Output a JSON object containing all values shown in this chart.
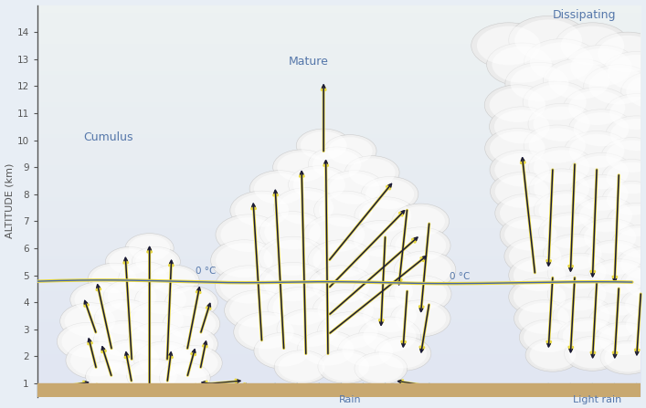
{
  "ylabel": "ALTITUDE (km)",
  "xlabel_rain": "Rain",
  "xlabel_light_rain": "Light rain",
  "ylim": [
    0.5,
    15
  ],
  "yticks": [
    1,
    2,
    3,
    4,
    5,
    6,
    7,
    8,
    9,
    10,
    11,
    12,
    13,
    14
  ],
  "bg_sky_top": "#c5dff0",
  "bg_sky_bottom": "#ddeeff",
  "bg_ground": "#c8a870",
  "cloud_color": "#f5f5f5",
  "cloud_edge": "#c0c0c0",
  "zero_line_yellow": "#e8d840",
  "zero_line_blue": "#4466aa",
  "label_cumulus": "Cumulus",
  "label_mature": "Mature",
  "label_dissipating": "Dissipating",
  "label_0c_1": "0 °C",
  "label_0c_2": "0 °C",
  "arrow_color": "#1a1a3a",
  "arrow_yellow": "#e8d840",
  "text_color": "#5577aa",
  "axis_color": "#555555",
  "fig_bg": "#e8eef5"
}
